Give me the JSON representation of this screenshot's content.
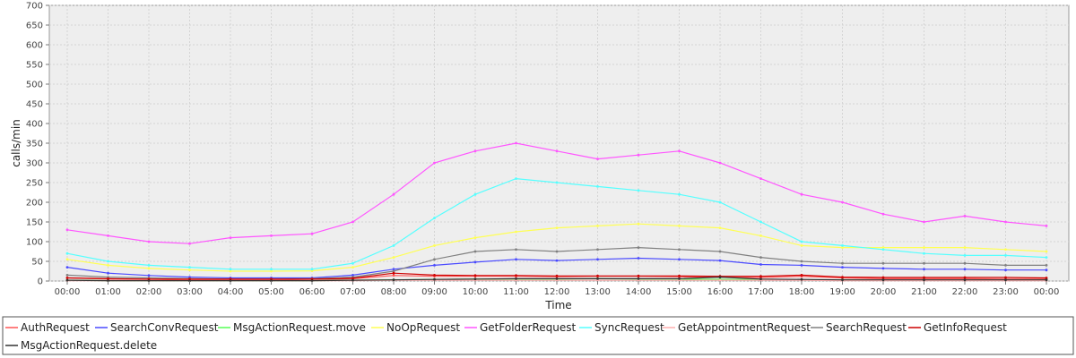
{
  "chart_data": {
    "type": "line",
    "title": "",
    "xlabel": "Time",
    "ylabel": "calls/min",
    "ylim": [
      0,
      700
    ],
    "yticks": [
      0,
      50,
      100,
      150,
      200,
      250,
      300,
      350,
      400,
      450,
      500,
      550,
      600,
      650,
      700
    ],
    "xlim": [
      "00:00",
      "24:00"
    ],
    "x": [
      "00:00",
      "01:00",
      "02:00",
      "03:00",
      "04:00",
      "05:00",
      "06:00",
      "07:00",
      "08:00",
      "09:00",
      "10:00",
      "11:00",
      "12:00",
      "13:00",
      "14:00",
      "15:00",
      "16:00",
      "17:00",
      "18:00",
      "19:00",
      "20:00",
      "21:00",
      "22:00",
      "23:00",
      "00:00"
    ],
    "xticks": [
      "00:00",
      "01:00",
      "02:00",
      "03:00",
      "04:00",
      "05:00",
      "06:00",
      "07:00",
      "08:00",
      "09:00",
      "10:00",
      "11:00",
      "12:00",
      "13:00",
      "14:00",
      "15:00",
      "16:00",
      "17:00",
      "18:00",
      "19:00",
      "20:00",
      "21:00",
      "22:00",
      "23:00",
      "00:00"
    ],
    "grid": true,
    "legend_position": "bottom",
    "series": [
      {
        "name": "AuthRequest",
        "color": "#ff5555",
        "values": [
          8,
          5,
          4,
          3,
          3,
          3,
          4,
          6,
          14,
          12,
          12,
          12,
          11,
          12,
          12,
          11,
          10,
          9,
          12,
          8,
          6,
          6,
          6,
          5,
          5
        ]
      },
      {
        "name": "SearchConvRequest",
        "color": "#4a4aff",
        "values": [
          35,
          20,
          14,
          10,
          8,
          8,
          8,
          15,
          30,
          40,
          48,
          55,
          52,
          55,
          58,
          55,
          52,
          42,
          40,
          35,
          32,
          30,
          30,
          28,
          28
        ]
      },
      {
        "name": "MsgActionRequest.move",
        "color": "#55ff55",
        "values": [
          2,
          1,
          1,
          1,
          1,
          1,
          1,
          2,
          3,
          4,
          5,
          5,
          5,
          6,
          5,
          5,
          4,
          4,
          3,
          3,
          2,
          2,
          2,
          2,
          2
        ]
      },
      {
        "name": "NoOpRequest",
        "color": "#ffff55",
        "values": [
          55,
          40,
          32,
          28,
          25,
          25,
          26,
          35,
          60,
          90,
          110,
          125,
          135,
          140,
          145,
          140,
          135,
          115,
          90,
          85,
          85,
          85,
          85,
          80,
          75
        ]
      },
      {
        "name": "GetFolderRequest",
        "color": "#ff55ff",
        "values": [
          130,
          115,
          100,
          95,
          110,
          115,
          120,
          150,
          220,
          300,
          330,
          350,
          330,
          310,
          320,
          330,
          300,
          260,
          220,
          200,
          170,
          150,
          165,
          150,
          140
        ]
      },
      {
        "name": "SyncRequest",
        "color": "#55ffff",
        "values": [
          70,
          50,
          40,
          35,
          30,
          30,
          30,
          45,
          90,
          160,
          220,
          260,
          250,
          240,
          230,
          220,
          200,
          150,
          100,
          90,
          80,
          70,
          65,
          65,
          60
        ]
      },
      {
        "name": "GetAppointmentRequest",
        "color": "#ffafaf",
        "values": [
          1,
          1,
          1,
          1,
          1,
          1,
          1,
          1,
          2,
          2,
          2,
          2,
          2,
          2,
          2,
          2,
          2,
          2,
          2,
          1,
          1,
          1,
          1,
          1,
          1
        ]
      },
      {
        "name": "SearchRequest",
        "color": "#808080",
        "values": [
          15,
          10,
          8,
          6,
          5,
          5,
          6,
          10,
          25,
          55,
          75,
          80,
          75,
          80,
          85,
          80,
          75,
          60,
          50,
          45,
          45,
          45,
          45,
          40,
          40
        ]
      },
      {
        "name": "GetInfoRequest",
        "color": "#cc0000",
        "values": [
          8,
          6,
          5,
          5,
          5,
          5,
          5,
          7,
          20,
          15,
          14,
          14,
          13,
          13,
          13,
          13,
          12,
          12,
          15,
          10,
          9,
          9,
          9,
          9,
          8
        ]
      },
      {
        "name": "MsgActionRequest.delete",
        "color": "#333333",
        "values": [
          2,
          1,
          1,
          1,
          1,
          1,
          1,
          2,
          3,
          4,
          5,
          6,
          6,
          6,
          6,
          6,
          10,
          5,
          4,
          3,
          3,
          3,
          3,
          3,
          3
        ]
      }
    ]
  }
}
